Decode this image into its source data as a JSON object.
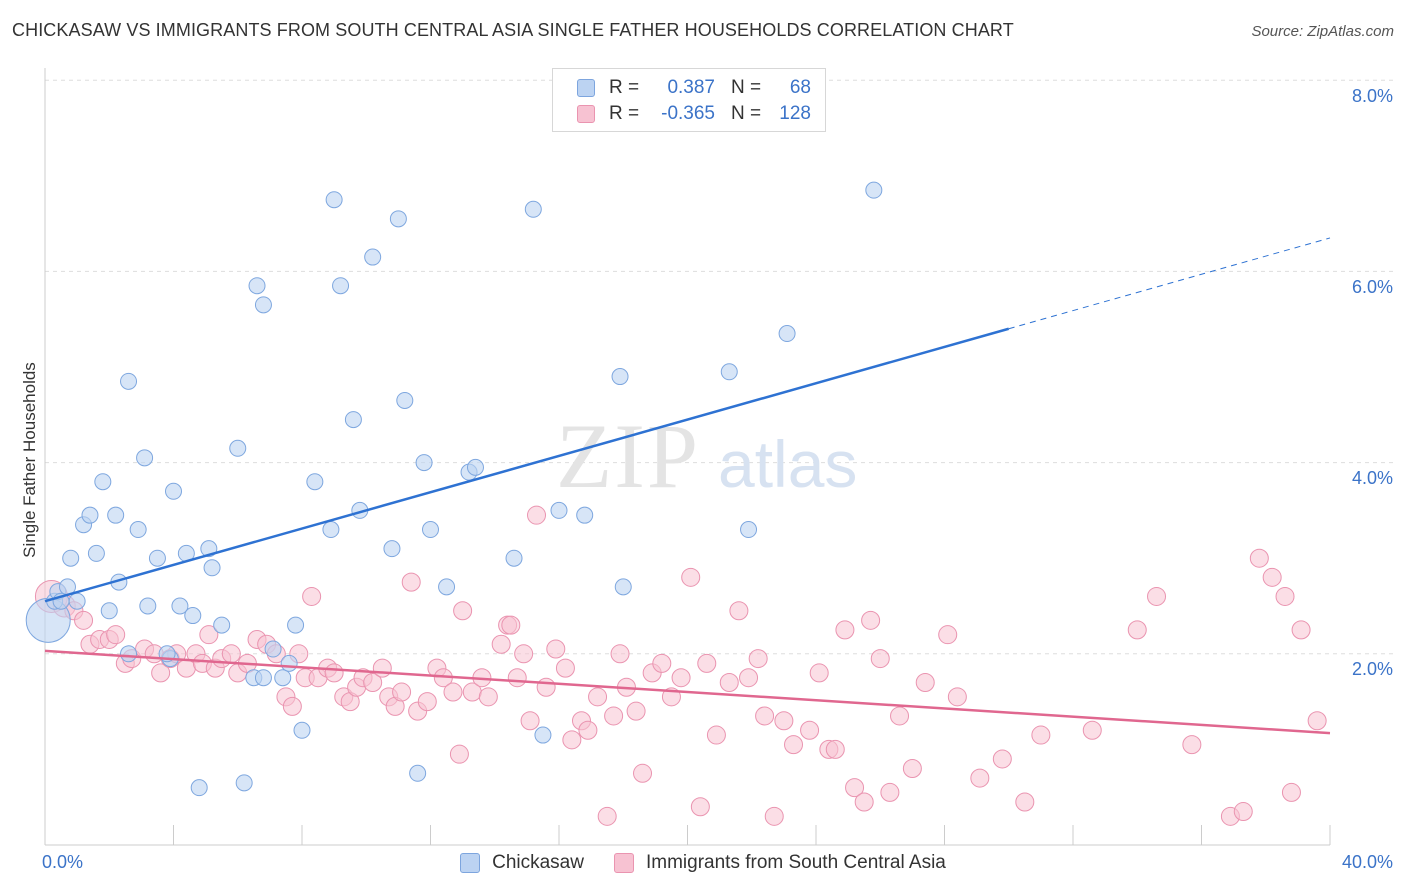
{
  "title": "CHICKASAW VS IMMIGRANTS FROM SOUTH CENTRAL ASIA SINGLE FATHER HOUSEHOLDS CORRELATION CHART",
  "source": "Source: ZipAtlas.com",
  "watermark": {
    "zip": "ZIP",
    "atlas": "atlas"
  },
  "legend_top": {
    "row1": {
      "r_label": "R =",
      "r_value": "0.387",
      "n_label": "N =",
      "n_value": "68"
    },
    "row2": {
      "r_label": "R =",
      "r_value": "-0.365",
      "n_label": "N =",
      "n_value": "128"
    }
  },
  "legend_bottom": {
    "series1": "Chickasaw",
    "series2": "Immigrants from South Central Asia"
  },
  "x_labels": {
    "min": "0.0%",
    "max": "40.0%"
  },
  "y_title": "Single Father Households",
  "y_ticks": [
    "8.0%",
    "6.0%",
    "4.0%",
    "2.0%"
  ],
  "colors": {
    "blue_fill": "#bcd3f2",
    "blue_stroke": "#7ea7df",
    "blue_line": "#2e72d2",
    "pink_fill": "#f7c2d2",
    "pink_stroke": "#ea94b0",
    "pink_line": "#e0678f",
    "grid": "#dddddd",
    "label": "#3b73c8"
  },
  "chart_data": {
    "type": "scatter",
    "xlim": [
      0,
      40
    ],
    "ylim": [
      0,
      8.0
    ],
    "grid": true,
    "series": [
      {
        "name": "Chickasaw",
        "r": 0.387,
        "n": 68,
        "trend": {
          "x0": 0,
          "y0": 2.55,
          "x1": 30,
          "y1": 5.4,
          "dashed_to_x": 40,
          "dashed_to_y": 6.35
        },
        "points": [
          [
            0.1,
            2.35,
            22
          ],
          [
            0.3,
            2.55,
            8
          ],
          [
            0.4,
            2.65,
            8
          ],
          [
            0.7,
            2.7,
            8
          ],
          [
            0.8,
            3.0,
            8
          ],
          [
            1.2,
            3.35,
            8
          ],
          [
            1.4,
            3.45,
            8
          ],
          [
            1.6,
            3.05,
            8
          ],
          [
            1.8,
            3.8,
            8
          ],
          [
            2.0,
            2.45,
            8
          ],
          [
            2.2,
            3.45,
            8
          ],
          [
            2.3,
            2.75,
            8
          ],
          [
            2.6,
            4.85,
            8
          ],
          [
            2.9,
            3.3,
            8
          ],
          [
            3.1,
            4.05,
            8
          ],
          [
            3.2,
            2.5,
            8
          ],
          [
            3.5,
            3.0,
            8
          ],
          [
            3.9,
            1.95,
            8
          ],
          [
            4.0,
            3.7,
            8
          ],
          [
            4.2,
            2.5,
            8
          ],
          [
            4.4,
            3.05,
            8
          ],
          [
            4.6,
            2.4,
            8
          ],
          [
            4.8,
            0.6,
            8
          ],
          [
            5.1,
            3.1,
            8
          ],
          [
            5.2,
            2.9,
            8
          ],
          [
            5.5,
            2.3,
            8
          ],
          [
            6.0,
            4.15,
            8
          ],
          [
            6.2,
            0.65,
            8
          ],
          [
            6.5,
            1.75,
            8
          ],
          [
            6.6,
            5.85,
            8
          ],
          [
            6.8,
            5.65,
            8
          ],
          [
            7.1,
            2.05,
            8
          ],
          [
            7.4,
            1.75,
            8
          ],
          [
            7.6,
            1.9,
            8
          ],
          [
            7.8,
            2.3,
            8
          ],
          [
            8.0,
            1.2,
            8
          ],
          [
            8.4,
            3.8,
            8
          ],
          [
            8.9,
            3.3,
            8
          ],
          [
            9.0,
            6.75,
            8
          ],
          [
            9.2,
            5.85,
            8
          ],
          [
            9.6,
            4.45,
            8
          ],
          [
            9.8,
            3.5,
            8
          ],
          [
            10.2,
            6.15,
            8
          ],
          [
            10.8,
            3.1,
            8
          ],
          [
            11.0,
            6.55,
            8
          ],
          [
            11.2,
            4.65,
            8
          ],
          [
            11.6,
            0.75,
            8
          ],
          [
            11.8,
            4.0,
            8
          ],
          [
            12.0,
            3.3,
            8
          ],
          [
            12.5,
            2.7,
            8
          ],
          [
            13.2,
            3.9,
            8
          ],
          [
            13.4,
            3.95,
            8
          ],
          [
            14.6,
            3.0,
            8
          ],
          [
            15.2,
            6.65,
            8
          ],
          [
            15.5,
            1.15,
            8
          ],
          [
            16.0,
            3.5,
            8
          ],
          [
            16.8,
            3.45,
            8
          ],
          [
            17.9,
            4.9,
            8
          ],
          [
            18.0,
            2.7,
            8
          ],
          [
            21.3,
            4.95,
            8
          ],
          [
            21.9,
            3.3,
            8
          ],
          [
            23.1,
            5.35,
            8
          ],
          [
            25.8,
            6.85,
            8
          ],
          [
            0.5,
            2.55,
            8
          ],
          [
            1.0,
            2.55,
            8
          ],
          [
            2.6,
            2.0,
            8
          ],
          [
            3.8,
            2.0,
            8
          ],
          [
            6.8,
            1.75,
            8
          ]
        ]
      },
      {
        "name": "Immigrants from South Central Asia",
        "r": -0.365,
        "n": 128,
        "trend": {
          "x0": 0,
          "y0": 2.03,
          "x1": 40,
          "y1": 1.17
        },
        "points": [
          [
            0.2,
            2.6,
            16
          ],
          [
            0.6,
            2.5,
            11
          ],
          [
            0.9,
            2.45,
            9
          ],
          [
            1.2,
            2.35,
            9
          ],
          [
            1.4,
            2.1,
            9
          ],
          [
            1.7,
            2.15,
            9
          ],
          [
            2.0,
            2.15,
            9
          ],
          [
            2.2,
            2.2,
            9
          ],
          [
            2.5,
            1.9,
            9
          ],
          [
            2.7,
            1.95,
            9
          ],
          [
            3.1,
            2.05,
            9
          ],
          [
            3.4,
            2.0,
            9
          ],
          [
            3.6,
            1.8,
            9
          ],
          [
            3.9,
            1.95,
            9
          ],
          [
            4.1,
            2.0,
            9
          ],
          [
            4.4,
            1.85,
            9
          ],
          [
            4.7,
            2.0,
            9
          ],
          [
            4.9,
            1.9,
            9
          ],
          [
            5.1,
            2.2,
            9
          ],
          [
            5.3,
            1.85,
            9
          ],
          [
            5.5,
            1.95,
            9
          ],
          [
            5.8,
            2.0,
            9
          ],
          [
            6.0,
            1.8,
            9
          ],
          [
            6.3,
            1.9,
            9
          ],
          [
            6.6,
            2.15,
            9
          ],
          [
            6.9,
            2.1,
            9
          ],
          [
            7.2,
            2.0,
            9
          ],
          [
            7.5,
            1.55,
            9
          ],
          [
            7.7,
            1.45,
            9
          ],
          [
            7.9,
            2.0,
            9
          ],
          [
            8.1,
            1.75,
            9
          ],
          [
            8.3,
            2.6,
            9
          ],
          [
            8.5,
            1.75,
            9
          ],
          [
            8.8,
            1.85,
            9
          ],
          [
            9.0,
            1.8,
            9
          ],
          [
            9.3,
            1.55,
            9
          ],
          [
            9.5,
            1.5,
            9
          ],
          [
            9.7,
            1.65,
            9
          ],
          [
            9.9,
            1.75,
            9
          ],
          [
            10.2,
            1.7,
            9
          ],
          [
            10.5,
            1.85,
            9
          ],
          [
            10.7,
            1.55,
            9
          ],
          [
            10.9,
            1.45,
            9
          ],
          [
            11.1,
            1.6,
            9
          ],
          [
            11.4,
            2.75,
            9
          ],
          [
            11.6,
            1.4,
            9
          ],
          [
            11.9,
            1.5,
            9
          ],
          [
            12.2,
            1.85,
            9
          ],
          [
            12.4,
            1.75,
            9
          ],
          [
            12.7,
            1.6,
            9
          ],
          [
            12.9,
            0.95,
            9
          ],
          [
            13.0,
            2.45,
            9
          ],
          [
            13.3,
            1.6,
            9
          ],
          [
            13.6,
            1.75,
            9
          ],
          [
            13.8,
            1.55,
            9
          ],
          [
            14.2,
            2.1,
            9
          ],
          [
            14.4,
            2.3,
            9
          ],
          [
            14.7,
            1.75,
            9
          ],
          [
            14.9,
            2.0,
            9
          ],
          [
            15.1,
            1.3,
            9
          ],
          [
            15.3,
            3.45,
            9
          ],
          [
            15.6,
            1.65,
            9
          ],
          [
            15.9,
            2.05,
            9
          ],
          [
            16.2,
            1.85,
            9
          ],
          [
            16.4,
            1.1,
            9
          ],
          [
            16.7,
            1.3,
            9
          ],
          [
            16.9,
            1.2,
            9
          ],
          [
            17.2,
            1.55,
            9
          ],
          [
            17.5,
            0.3,
            9
          ],
          [
            17.7,
            1.35,
            9
          ],
          [
            17.9,
            2.0,
            9
          ],
          [
            18.1,
            1.65,
            9
          ],
          [
            18.4,
            1.4,
            9
          ],
          [
            18.6,
            0.75,
            9
          ],
          [
            18.9,
            1.8,
            9
          ],
          [
            19.2,
            1.9,
            9
          ],
          [
            19.5,
            1.55,
            9
          ],
          [
            19.8,
            1.75,
            9
          ],
          [
            20.1,
            2.8,
            9
          ],
          [
            20.4,
            0.4,
            9
          ],
          [
            20.6,
            1.9,
            9
          ],
          [
            20.9,
            1.15,
            9
          ],
          [
            21.3,
            1.7,
            9
          ],
          [
            21.6,
            2.45,
            9
          ],
          [
            21.9,
            1.75,
            9
          ],
          [
            22.2,
            1.95,
            9
          ],
          [
            22.4,
            1.35,
            9
          ],
          [
            22.7,
            0.3,
            9
          ],
          [
            23.0,
            1.3,
            9
          ],
          [
            23.3,
            1.05,
            9
          ],
          [
            23.8,
            1.2,
            9
          ],
          [
            24.1,
            1.8,
            9
          ],
          [
            24.4,
            1.0,
            9
          ],
          [
            24.6,
            1.0,
            9
          ],
          [
            24.9,
            2.25,
            9
          ],
          [
            25.2,
            0.6,
            9
          ],
          [
            25.5,
            0.45,
            9
          ],
          [
            25.7,
            2.35,
            9
          ],
          [
            26.0,
            1.95,
            9
          ],
          [
            26.3,
            0.55,
            9
          ],
          [
            26.6,
            1.35,
            9
          ],
          [
            27.0,
            0.8,
            9
          ],
          [
            27.4,
            1.7,
            9
          ],
          [
            28.1,
            2.2,
            9
          ],
          [
            28.4,
            1.55,
            9
          ],
          [
            29.1,
            0.7,
            9
          ],
          [
            29.8,
            0.9,
            9
          ],
          [
            30.5,
            0.45,
            9
          ],
          [
            31.0,
            1.15,
            9
          ],
          [
            32.6,
            1.2,
            9
          ],
          [
            34.0,
            2.25,
            9
          ],
          [
            34.6,
            2.6,
            9
          ],
          [
            35.7,
            1.05,
            9
          ],
          [
            36.9,
            0.3,
            9
          ],
          [
            37.3,
            0.35,
            9
          ],
          [
            37.8,
            3.0,
            9
          ],
          [
            38.2,
            2.8,
            9
          ],
          [
            38.6,
            2.6,
            9
          ],
          [
            38.8,
            0.55,
            9
          ],
          [
            39.1,
            2.25,
            9
          ],
          [
            39.6,
            1.3,
            9
          ],
          [
            14.5,
            2.3,
            9
          ]
        ]
      }
    ]
  }
}
